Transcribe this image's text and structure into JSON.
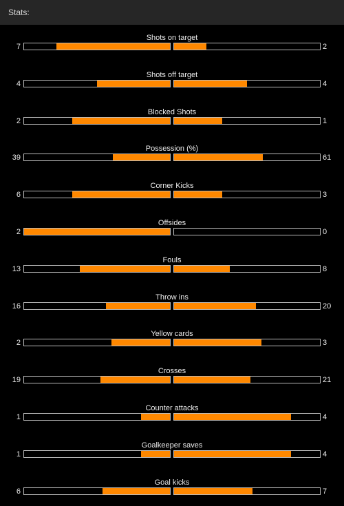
{
  "header": {
    "title": "Stats:"
  },
  "colors": {
    "fill": "#ff8800",
    "background": "#000000",
    "header_bg": "#262626",
    "bar_border": "#bdbdbd"
  },
  "stats": [
    {
      "label": "Shots on target",
      "home": "7",
      "away": "2",
      "home_fill": 0.78,
      "away_fill": 0.22
    },
    {
      "label": "Shots off target",
      "home": "4",
      "away": "4",
      "home_fill": 0.5,
      "away_fill": 0.5
    },
    {
      "label": "Blocked Shots",
      "home": "2",
      "away": "1",
      "home_fill": 0.67,
      "away_fill": 0.33
    },
    {
      "label": "Possession (%)",
      "home": "39",
      "away": "61",
      "home_fill": 0.39,
      "away_fill": 0.61
    },
    {
      "label": "Corner Kicks",
      "home": "6",
      "away": "3",
      "home_fill": 0.67,
      "away_fill": 0.33
    },
    {
      "label": "Offsides",
      "home": "2",
      "away": "0",
      "home_fill": 1.0,
      "away_fill": 0.0
    },
    {
      "label": "Fouls",
      "home": "13",
      "away": "8",
      "home_fill": 0.62,
      "away_fill": 0.38
    },
    {
      "label": "Throw ins",
      "home": "16",
      "away": "20",
      "home_fill": 0.44,
      "away_fill": 0.56
    },
    {
      "label": "Yellow cards",
      "home": "2",
      "away": "3",
      "home_fill": 0.4,
      "away_fill": 0.6
    },
    {
      "label": "Crosses",
      "home": "19",
      "away": "21",
      "home_fill": 0.475,
      "away_fill": 0.525
    },
    {
      "label": "Counter attacks",
      "home": "1",
      "away": "4",
      "home_fill": 0.2,
      "away_fill": 0.8
    },
    {
      "label": "Goalkeeper saves",
      "home": "1",
      "away": "4",
      "home_fill": 0.2,
      "away_fill": 0.8
    },
    {
      "label": "Goal kicks",
      "home": "6",
      "away": "7",
      "home_fill": 0.46,
      "away_fill": 0.54
    }
  ]
}
